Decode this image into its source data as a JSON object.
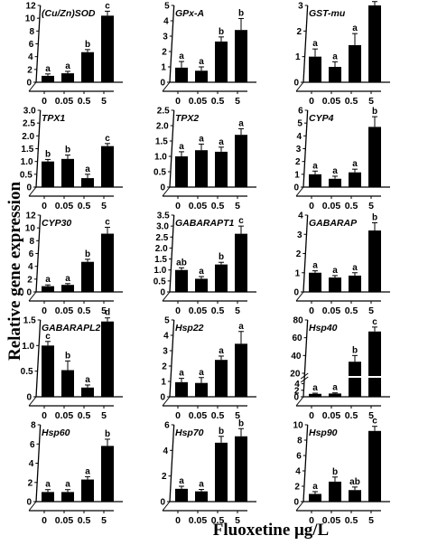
{
  "figure": {
    "ylabel": "Relative gene expression",
    "xlabel": "Fluoxetine μg/L"
  },
  "chart_data": [
    {
      "type": "bar",
      "title": "(Cu/Zn)SOD",
      "categories": [
        "0",
        "0.05",
        "0.5",
        "5"
      ],
      "values": [
        1.0,
        1.4,
        4.7,
        10.4
      ],
      "errors": [
        0.3,
        0.3,
        0.4,
        0.7
      ],
      "letters": [
        "a",
        "a",
        "b",
        "c"
      ],
      "ylim": [
        0,
        12
      ],
      "yticks": [
        0,
        2,
        4,
        6,
        8,
        10,
        12
      ]
    },
    {
      "type": "bar",
      "title": "GPx-A",
      "categories": [
        "0",
        "0.05",
        "0.5",
        "5"
      ],
      "values": [
        0.95,
        0.75,
        2.65,
        3.4
      ],
      "errors": [
        0.4,
        0.25,
        0.3,
        0.75
      ],
      "letters": [
        "a",
        "a",
        "b",
        "b"
      ],
      "ylim": [
        0,
        5
      ],
      "yticks": [
        0,
        1,
        2,
        3,
        4,
        5
      ]
    },
    {
      "type": "bar",
      "title": "GST-mu",
      "categories": [
        "0",
        "0.05",
        "0.5",
        "5"
      ],
      "values": [
        1.0,
        0.6,
        1.45,
        3.0
      ],
      "errors": [
        0.3,
        0.2,
        0.45,
        0.15
      ],
      "letters": [
        "a",
        "a",
        "a",
        "b"
      ],
      "ylim": [
        0,
        3
      ],
      "yticks": [
        0,
        1,
        2,
        3
      ]
    },
    {
      "type": "bar",
      "title": "TPX1",
      "categories": [
        "0",
        "0.05",
        "0.5",
        "5"
      ],
      "values": [
        1.0,
        1.1,
        0.35,
        1.6
      ],
      "errors": [
        0.08,
        0.15,
        0.15,
        0.1
      ],
      "letters": [
        "b",
        "b",
        "a",
        "c"
      ],
      "ylim": [
        0,
        3.0
      ],
      "yticks": [
        0,
        0.5,
        1.0,
        1.5,
        2.0,
        2.5,
        3.0
      ],
      "tick_labels": [
        "0",
        "0.5",
        "1.0",
        "1.5",
        "2.0",
        "2.5",
        "3.0"
      ]
    },
    {
      "type": "bar",
      "title": "TPX2",
      "categories": [
        "0",
        "0.05",
        "0.5",
        "5"
      ],
      "values": [
        1.0,
        1.2,
        1.15,
        1.7
      ],
      "errors": [
        0.15,
        0.2,
        0.15,
        0.2
      ],
      "letters": [
        "a",
        "a",
        "a",
        "a"
      ],
      "ylim": [
        0,
        2.5
      ],
      "yticks": [
        0,
        0.5,
        1.0,
        1.5,
        2.0,
        2.5
      ],
      "tick_labels": [
        "0",
        "0.5",
        "1.0",
        "1.5",
        "2.0",
        "2.5"
      ]
    },
    {
      "type": "bar",
      "title": "CYP4",
      "categories": [
        "0",
        "0.05",
        "0.5",
        "5"
      ],
      "values": [
        1.0,
        0.65,
        1.15,
        4.7
      ],
      "errors": [
        0.25,
        0.2,
        0.25,
        0.8
      ],
      "letters": [
        "a",
        "a",
        "a",
        "b"
      ],
      "ylim": [
        0,
        6
      ],
      "yticks": [
        0,
        1,
        2,
        3,
        4,
        5,
        6
      ]
    },
    {
      "type": "bar",
      "title": "CYP30",
      "categories": [
        "0",
        "0.05",
        "0.5",
        "5"
      ],
      "values": [
        0.9,
        1.1,
        4.7,
        9.1
      ],
      "errors": [
        0.2,
        0.2,
        0.4,
        1.0
      ],
      "letters": [
        "a",
        "a",
        "b",
        "c"
      ],
      "ylim": [
        0,
        12
      ],
      "yticks": [
        0,
        2,
        4,
        6,
        8,
        10,
        12
      ]
    },
    {
      "type": "bar",
      "title": "GABARAPT1",
      "categories": [
        "0",
        "0.05",
        "0.5",
        "5"
      ],
      "values": [
        1.0,
        0.6,
        1.25,
        2.65
      ],
      "errors": [
        0.1,
        0.1,
        0.1,
        0.35
      ],
      "letters": [
        "ab",
        "a",
        "b",
        "c"
      ],
      "ylim": [
        0,
        3.5
      ],
      "yticks": [
        0,
        0.5,
        1.0,
        1.5,
        2.0,
        2.5,
        3.0,
        3.5
      ],
      "tick_labels": [
        "0",
        "0.5",
        "1.0",
        "1.5",
        "2.0",
        "2.5",
        "3.0",
        "3.5"
      ]
    },
    {
      "type": "bar",
      "title": "GABARAP",
      "categories": [
        "0",
        "0.05",
        "0.5",
        "5"
      ],
      "values": [
        1.0,
        0.75,
        0.85,
        3.2
      ],
      "errors": [
        0.1,
        0.1,
        0.15,
        0.4
      ],
      "letters": [
        "a",
        "a",
        "a",
        "b"
      ],
      "ylim": [
        0,
        4
      ],
      "yticks": [
        0,
        1,
        2,
        3,
        4
      ]
    },
    {
      "type": "bar",
      "title": "GABARAPL2",
      "categories": [
        "0",
        "0.05",
        "0.5",
        "5"
      ],
      "values": [
        1.0,
        0.52,
        0.18,
        1.47
      ],
      "errors": [
        0.08,
        0.18,
        0.05,
        0.07
      ],
      "letters": [
        "c",
        "b",
        "a",
        "d"
      ],
      "ylim": [
        0,
        1.5
      ],
      "yticks": [
        0,
        0.5,
        1.0,
        1.5
      ],
      "tick_labels": [
        "0",
        "0.5",
        "1.0",
        "1.5"
      ]
    },
    {
      "type": "bar",
      "title": "Hsp22",
      "categories": [
        "0",
        "0.05",
        "0.5",
        "5"
      ],
      "values": [
        0.95,
        0.9,
        2.4,
        3.45
      ],
      "errors": [
        0.25,
        0.35,
        0.25,
        0.8
      ],
      "letters": [
        "a",
        "a",
        "a",
        "a"
      ],
      "ylim": [
        0,
        5
      ],
      "yticks": [
        0,
        1,
        2,
        3,
        4,
        5
      ]
    },
    {
      "type": "bar",
      "title": "Hsp40",
      "categories": [
        "0",
        "0.05",
        "0.5",
        "5"
      ],
      "values": [
        0.9,
        1.0,
        33,
        67
      ],
      "errors": [
        0.2,
        0.2,
        7,
        5
      ],
      "letters": [
        "a",
        "a",
        "b",
        "c"
      ],
      "broken_axis": true,
      "ylim": [
        0,
        80
      ],
      "yticks_lower": [
        0,
        2,
        4
      ],
      "yticks_upper": [
        20,
        40,
        60,
        80
      ]
    },
    {
      "type": "bar",
      "title": "Hsp60",
      "categories": [
        "0",
        "0.05",
        "0.5",
        "5"
      ],
      "values": [
        1.0,
        1.0,
        2.3,
        5.8
      ],
      "errors": [
        0.25,
        0.25,
        0.3,
        0.7
      ],
      "letters": [
        "a",
        "a",
        "a",
        "b"
      ],
      "ylim": [
        0,
        8
      ],
      "yticks": [
        0,
        2,
        4,
        6,
        8
      ]
    },
    {
      "type": "bar",
      "title": "Hsp70",
      "categories": [
        "0",
        "0.05",
        "0.5",
        "5"
      ],
      "values": [
        1.0,
        0.8,
        4.6,
        5.1
      ],
      "errors": [
        0.2,
        0.15,
        0.5,
        0.6
      ],
      "letters": [
        "a",
        "a",
        "b",
        "b"
      ],
      "ylim": [
        0,
        6
      ],
      "yticks": [
        0,
        2,
        4,
        6
      ]
    },
    {
      "type": "bar",
      "title": "Hsp90",
      "categories": [
        "0",
        "0.05",
        "0.5",
        "5"
      ],
      "values": [
        1.0,
        2.6,
        1.5,
        9.2
      ],
      "errors": [
        0.3,
        0.6,
        0.4,
        0.6
      ],
      "letters": [
        "a",
        "b",
        "ab",
        "c"
      ],
      "ylim": [
        0,
        10
      ],
      "yticks": [
        0,
        2,
        4,
        6,
        8,
        10
      ]
    }
  ]
}
